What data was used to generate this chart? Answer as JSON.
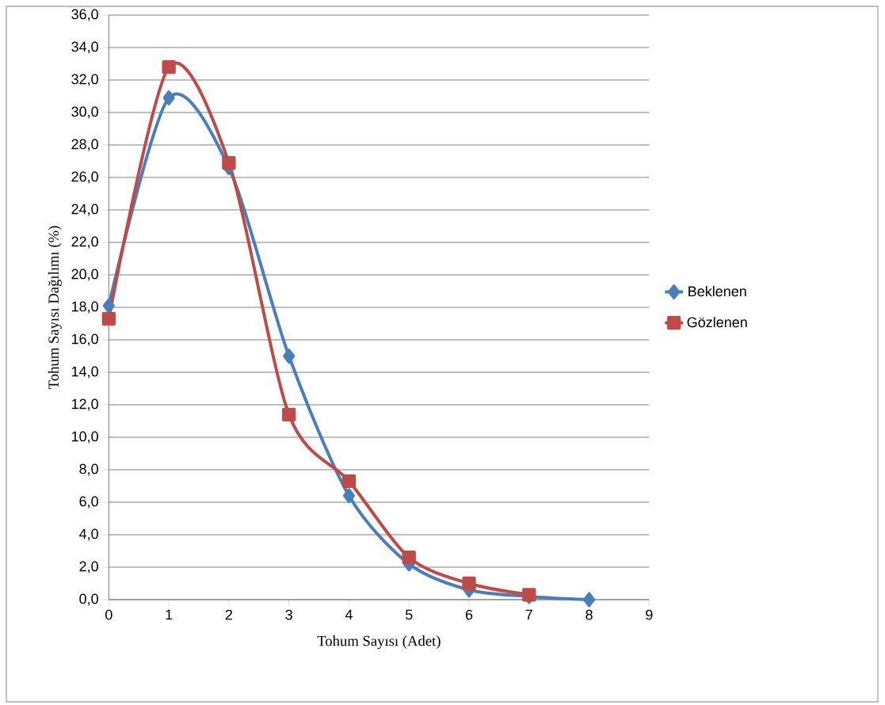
{
  "chart_data": {
    "type": "line",
    "xlabel": "Tohum Sayısı (Adet)",
    "ylabel": "Tohum Sayısı Dağılımı (%)",
    "x": [
      0,
      1,
      2,
      3,
      4,
      5,
      6,
      7,
      8
    ],
    "series": [
      {
        "name": "Beklenen",
        "color": "#4a7ebb",
        "marker": "diamond",
        "values": [
          18.1,
          30.9,
          26.6,
          15.0,
          6.4,
          2.2,
          0.6,
          0.2,
          0.0
        ]
      },
      {
        "name": "Gözlenen",
        "color": "#be4b48",
        "marker": "square",
        "values": [
          17.3,
          32.8,
          26.9,
          11.4,
          7.3,
          2.6,
          1.0,
          0.3,
          null
        ]
      }
    ],
    "xlim": [
      0,
      9
    ],
    "xticks": [
      0,
      1,
      2,
      3,
      4,
      5,
      6,
      7,
      8,
      9
    ],
    "ylim": [
      0,
      36
    ],
    "yticks": [
      {
        "value": 0,
        "label": "0,0"
      },
      {
        "value": 2,
        "label": "2,0"
      },
      {
        "value": 4,
        "label": "4,0"
      },
      {
        "value": 6,
        "label": "6,0"
      },
      {
        "value": 8,
        "label": "8,0"
      },
      {
        "value": 10,
        "label": "10,0"
      },
      {
        "value": 12,
        "label": "12,0"
      },
      {
        "value": 14,
        "label": "14,0"
      },
      {
        "value": 16,
        "label": "16,0"
      },
      {
        "value": 18,
        "label": "18,0"
      },
      {
        "value": 20,
        "label": "20,0"
      },
      {
        "value": 22,
        "label": "22,0"
      },
      {
        "value": 24,
        "label": "24,0"
      },
      {
        "value": 26,
        "label": "26,0"
      },
      {
        "value": 28,
        "label": "28,0"
      },
      {
        "value": 30,
        "label": "30,0"
      },
      {
        "value": 32,
        "label": "32,0"
      },
      {
        "value": 34,
        "label": "34,0"
      },
      {
        "value": 36,
        "label": "36,0"
      }
    ],
    "grid": "y",
    "legend": "right",
    "line_style": "solid"
  }
}
